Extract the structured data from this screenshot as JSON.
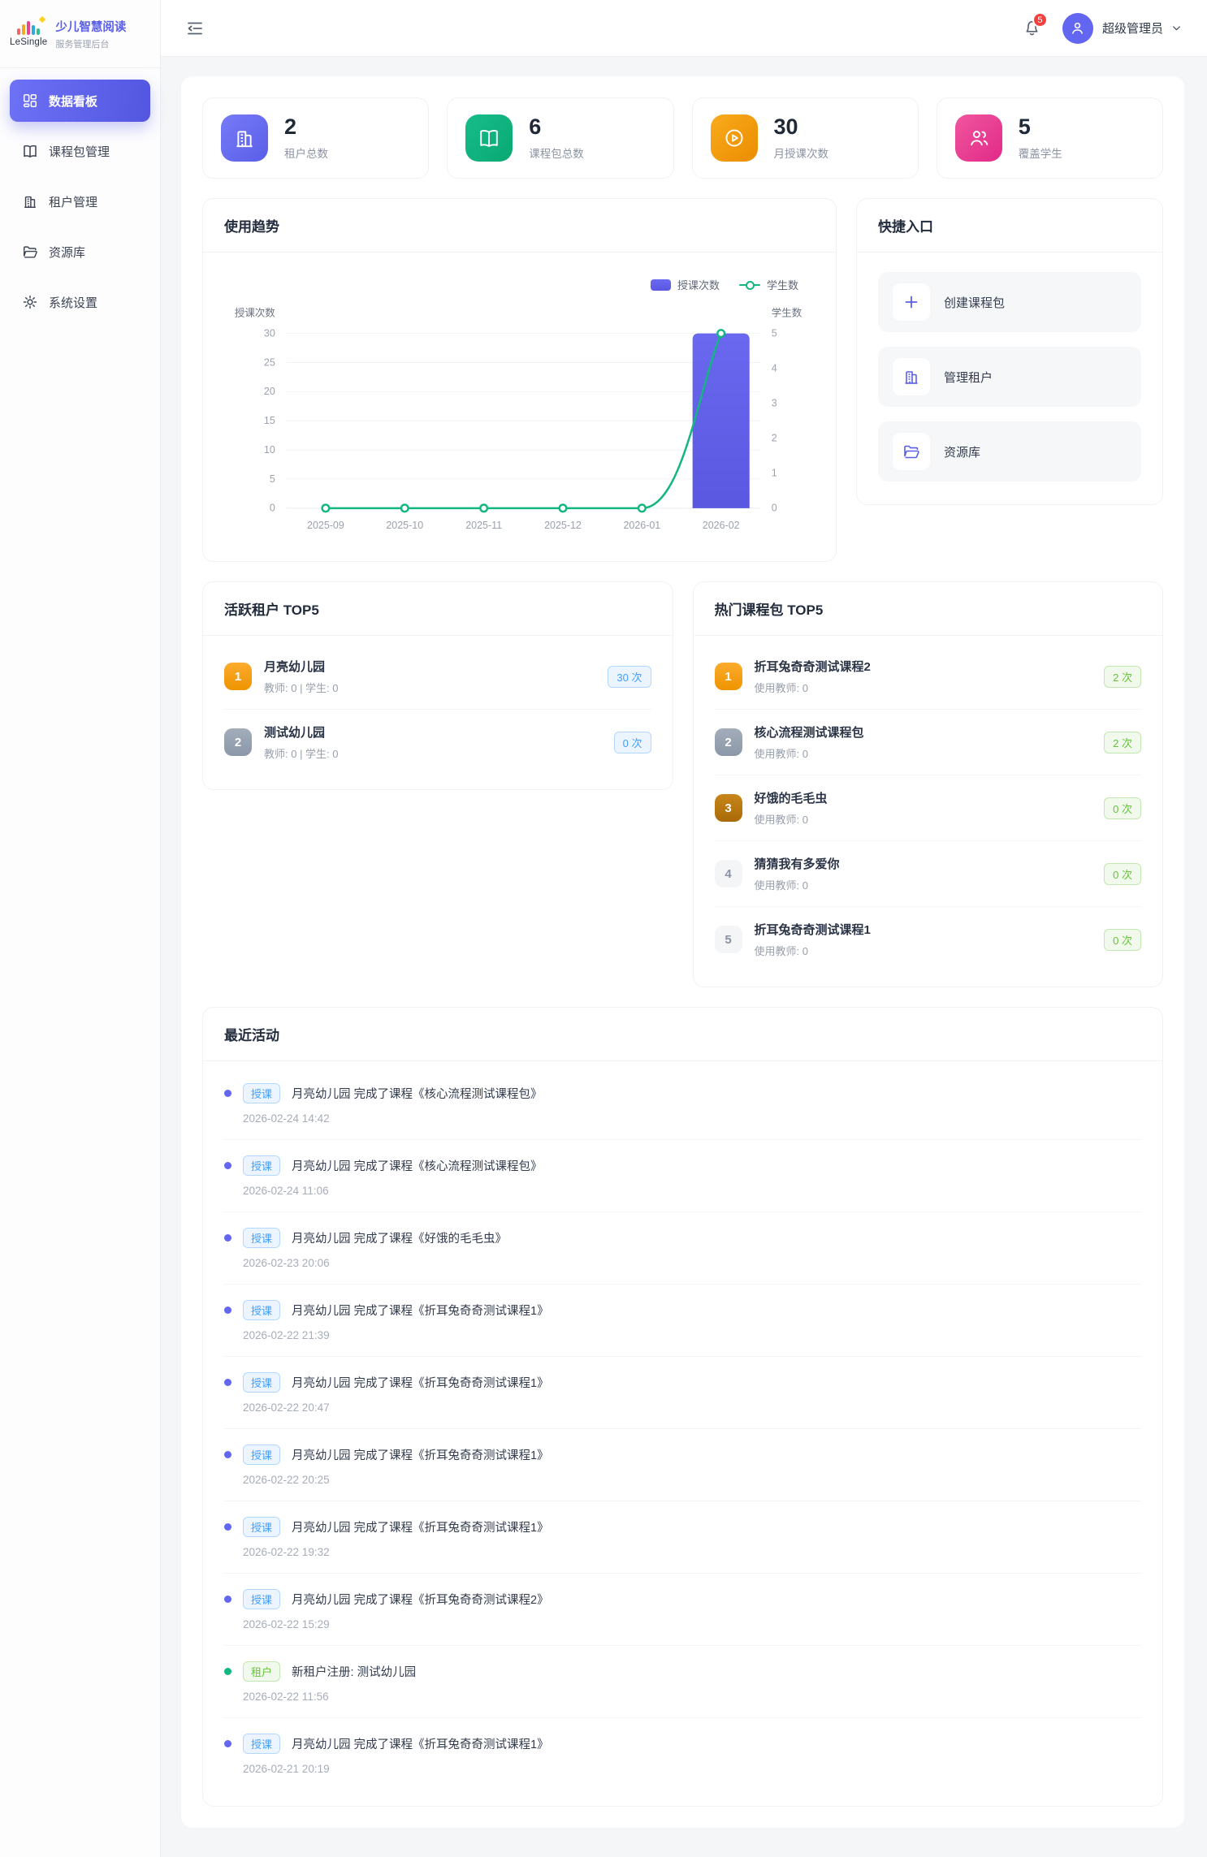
{
  "brand": {
    "logo_text": "LeSingle",
    "title": "少儿智慧阅读",
    "subtitle": "服务管理后台"
  },
  "sidebar": {
    "items": [
      {
        "label": "数据看板",
        "icon": "dashboard-icon",
        "state": "active"
      },
      {
        "label": "课程包管理",
        "icon": "book-icon",
        "state": "normal"
      },
      {
        "label": "租户管理",
        "icon": "building-icon",
        "state": "normal"
      },
      {
        "label": "资源库",
        "icon": "folder-icon",
        "state": "normal"
      },
      {
        "label": "系统设置",
        "icon": "gear-icon",
        "state": "normal"
      }
    ]
  },
  "header": {
    "notification_count": "5",
    "user_name": "超级管理员"
  },
  "stats": [
    {
      "value": "2",
      "label": "租户总数",
      "icon": "building-icon",
      "color_key": "purple",
      "color": "#5f63ea"
    },
    {
      "value": "6",
      "label": "课程包总数",
      "icon": "book-icon",
      "color_key": "green",
      "color": "#10b27e"
    },
    {
      "value": "30",
      "label": "月授课次数",
      "icon": "play-circle-icon",
      "color_key": "orange",
      "color": "#f09a0b"
    },
    {
      "value": "5",
      "label": "覆盖学生",
      "icon": "people-icon",
      "color_key": "pink",
      "color": "#e83d92"
    }
  ],
  "trend": {
    "title": "使用趋势",
    "legend_bar": "授课次数",
    "legend_line": "学生数"
  },
  "chart_data": {
    "type": "bar+line",
    "categories": [
      "2025-09",
      "2025-10",
      "2025-11",
      "2025-12",
      "2026-01",
      "2026-02"
    ],
    "series": [
      {
        "name": "授课次数",
        "type": "bar",
        "axis": "left",
        "color": "#5b5fe8",
        "values": [
          0,
          0,
          0,
          0,
          0,
          30
        ]
      },
      {
        "name": "学生数",
        "type": "line",
        "axis": "right",
        "color": "#12b77f",
        "values": [
          0,
          0,
          0,
          0,
          0,
          5
        ]
      }
    ],
    "left_axis": {
      "label": "授课次数",
      "min": 0,
      "max": 30,
      "ticks": [
        0,
        5,
        10,
        15,
        20,
        25,
        30
      ]
    },
    "right_axis": {
      "label": "学生数",
      "min": 0,
      "max": 5,
      "ticks": [
        0,
        1,
        2,
        3,
        4,
        5
      ]
    },
    "grid": true,
    "legend_position": "top-right"
  },
  "quick": {
    "title": "快捷入口",
    "items": [
      {
        "label": "创建课程包",
        "icon": "plus-icon"
      },
      {
        "label": "管理租户",
        "icon": "building-icon"
      },
      {
        "label": "资源库",
        "icon": "folder-icon"
      }
    ]
  },
  "active_tenants": {
    "title": "活跃租户 TOP5",
    "items": [
      {
        "rank": "1",
        "name": "月亮幼儿园",
        "meta": "教师: 0 | 学生: 0",
        "count": "30 次"
      },
      {
        "rank": "2",
        "name": "测试幼儿园",
        "meta": "教师: 0 | 学生: 0",
        "count": "0 次"
      }
    ]
  },
  "hot_packages": {
    "title": "热门课程包 TOP5",
    "items": [
      {
        "rank": "1",
        "name": "折耳兔奇奇测试课程2",
        "meta": "使用教师: 0",
        "count": "2 次"
      },
      {
        "rank": "2",
        "name": "核心流程测试课程包",
        "meta": "使用教师: 0",
        "count": "2 次"
      },
      {
        "rank": "3",
        "name": "好饿的毛毛虫",
        "meta": "使用教师: 0",
        "count": "0 次"
      },
      {
        "rank": "4",
        "name": "猜猜我有多爱你",
        "meta": "使用教师: 0",
        "count": "0 次"
      },
      {
        "rank": "5",
        "name": "折耳兔奇奇测试课程1",
        "meta": "使用教师: 0",
        "count": "0 次"
      }
    ]
  },
  "activities": {
    "title": "最近活动",
    "items": [
      {
        "type": "授课",
        "kind": "blue",
        "text": "月亮幼儿园 完成了课程《核心流程测试课程包》",
        "time": "2026-02-24 14:42"
      },
      {
        "type": "授课",
        "kind": "blue",
        "text": "月亮幼儿园 完成了课程《核心流程测试课程包》",
        "time": "2026-02-24 11:06"
      },
      {
        "type": "授课",
        "kind": "blue",
        "text": "月亮幼儿园 完成了课程《好饿的毛毛虫》",
        "time": "2026-02-23 20:06"
      },
      {
        "type": "授课",
        "kind": "blue",
        "text": "月亮幼儿园 完成了课程《折耳兔奇奇测试课程1》",
        "time": "2026-02-22 21:39"
      },
      {
        "type": "授课",
        "kind": "blue",
        "text": "月亮幼儿园 完成了课程《折耳兔奇奇测试课程1》",
        "time": "2026-02-22 20:47"
      },
      {
        "type": "授课",
        "kind": "blue",
        "text": "月亮幼儿园 完成了课程《折耳兔奇奇测试课程1》",
        "time": "2026-02-22 20:25"
      },
      {
        "type": "授课",
        "kind": "blue",
        "text": "月亮幼儿园 完成了课程《折耳兔奇奇测试课程1》",
        "time": "2026-02-22 19:32"
      },
      {
        "type": "授课",
        "kind": "blue",
        "text": "月亮幼儿园 完成了课程《折耳兔奇奇测试课程2》",
        "time": "2026-02-22 15:29"
      },
      {
        "type": "租户",
        "kind": "green",
        "text": "新租户注册: 测试幼儿园",
        "time": "2026-02-22 11:56"
      },
      {
        "type": "授课",
        "kind": "blue",
        "text": "月亮幼儿园 完成了课程《折耳兔奇奇测试课程1》",
        "time": "2026-02-21 20:19"
      }
    ]
  }
}
